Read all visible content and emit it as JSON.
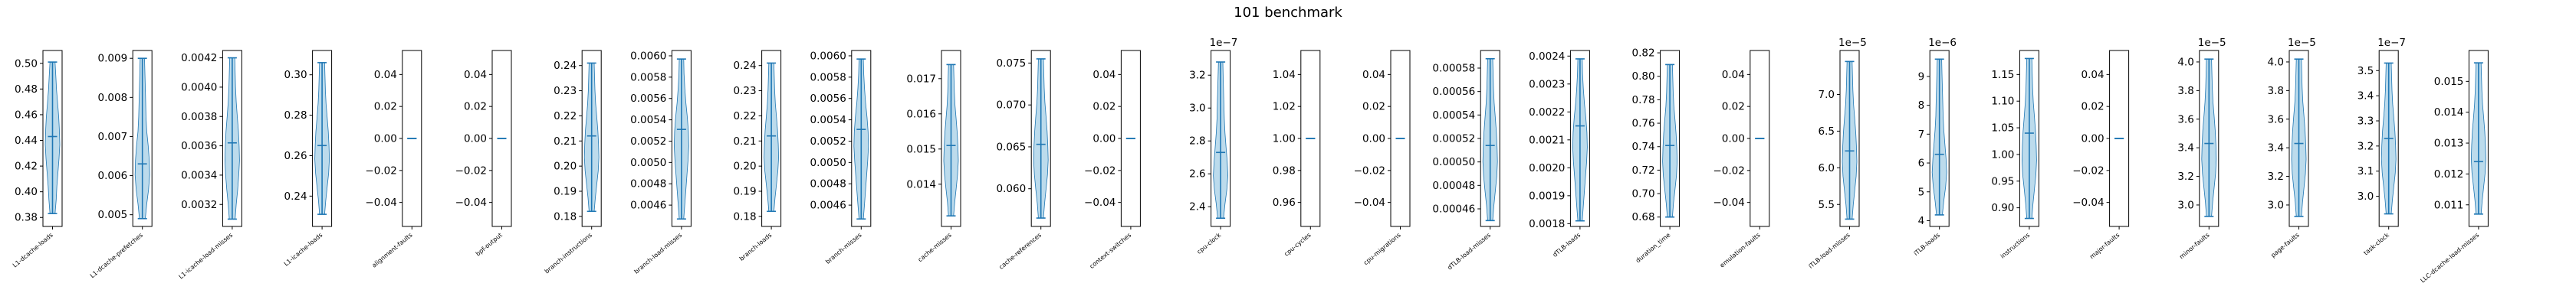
{
  "chart_data": {
    "type": "violin",
    "title": "101 benchmark",
    "colors": {
      "body": "#a6cfe6",
      "line": "#1f77b4",
      "frame": "#000000"
    },
    "panels": [
      {
        "label": "L1-dcache-loads",
        "ylim": [
          0.373,
          0.51
        ],
        "ticks": [
          "0.38",
          "0.40",
          "0.42",
          "0.44",
          "0.46",
          "0.48",
          "0.50"
        ],
        "tick_values": [
          0.38,
          0.4,
          0.42,
          0.44,
          0.46,
          0.48,
          0.5
        ],
        "exp": "",
        "min": 0.383,
        "max": 0.501,
        "mean": 0.443,
        "shape": [
          0.35,
          0.5,
          0.6,
          0.75,
          0.9,
          1.0,
          0.95,
          0.85,
          0.7,
          0.55,
          0.45,
          0.35
        ]
      },
      {
        "label": "L1-dcache-prefetches",
        "ylim": [
          0.0047,
          0.0092
        ],
        "ticks": [
          "0.005",
          "0.006",
          "0.007",
          "0.008",
          "0.009"
        ],
        "tick_values": [
          0.005,
          0.006,
          0.007,
          0.008,
          0.009
        ],
        "exp": "",
        "min": 0.0049,
        "max": 0.009,
        "mean": 0.0063,
        "shape": [
          0.4,
          0.6,
          0.85,
          1.0,
          0.95,
          0.8,
          0.6,
          0.5,
          0.45,
          0.4,
          0.35,
          0.3
        ]
      },
      {
        "label": "L1-icache-load-misses",
        "ylim": [
          0.00305,
          0.00425
        ],
        "ticks": [
          "0.0032",
          "0.0034",
          "0.0036",
          "0.0038",
          "0.0040",
          "0.0042"
        ],
        "tick_values": [
          0.0032,
          0.0034,
          0.0036,
          0.0038,
          0.004,
          0.0042
        ],
        "exp": "",
        "min": 0.0031,
        "max": 0.0042,
        "mean": 0.00362,
        "shape": [
          0.4,
          0.55,
          0.75,
          0.9,
          1.0,
          0.95,
          0.85,
          0.7,
          0.55,
          0.45,
          0.4,
          0.35
        ]
      },
      {
        "label": "L1-icache-loads",
        "ylim": [
          0.225,
          0.312
        ],
        "ticks": [
          "0.24",
          "0.26",
          "0.28",
          "0.30"
        ],
        "tick_values": [
          0.24,
          0.26,
          0.28,
          0.3
        ],
        "exp": "",
        "min": 0.231,
        "max": 0.306,
        "mean": 0.265,
        "shape": [
          0.35,
          0.5,
          0.7,
          0.9,
          1.0,
          0.95,
          0.85,
          0.7,
          0.55,
          0.45,
          0.4,
          0.35
        ]
      },
      {
        "label": "alignment-faults",
        "ylim": [
          -0.055,
          0.055
        ],
        "ticks": [
          "−0.04",
          "−0.02",
          "0.00",
          "0.02",
          "0.04"
        ],
        "tick_values": [
          -0.04,
          -0.02,
          0,
          0.02,
          0.04
        ],
        "exp": "",
        "min": 0,
        "max": 0,
        "mean": 0,
        "flat": true
      },
      {
        "label": "bpf-output",
        "ylim": [
          -0.055,
          0.055
        ],
        "ticks": [
          "−0.04",
          "−0.02",
          "0.00",
          "0.02",
          "0.04"
        ],
        "tick_values": [
          -0.04,
          -0.02,
          0,
          0.02,
          0.04
        ],
        "exp": "",
        "min": 0,
        "max": 0,
        "mean": 0,
        "flat": true
      },
      {
        "label": "branch-instructions",
        "ylim": [
          0.176,
          0.246
        ],
        "ticks": [
          "0.18",
          "0.19",
          "0.20",
          "0.21",
          "0.22",
          "0.23",
          "0.24"
        ],
        "tick_values": [
          0.18,
          0.19,
          0.2,
          0.21,
          0.22,
          0.23,
          0.24
        ],
        "exp": "",
        "min": 0.182,
        "max": 0.241,
        "mean": 0.212,
        "shape": [
          0.35,
          0.5,
          0.7,
          0.9,
          1.0,
          0.95,
          0.85,
          0.7,
          0.55,
          0.45,
          0.4,
          0.35
        ]
      },
      {
        "label": "branch-load-misses",
        "ylim": [
          0.0044,
          0.00605
        ],
        "ticks": [
          "0.0046",
          "0.0048",
          "0.0050",
          "0.0052",
          "0.0054",
          "0.0056",
          "0.0058",
          "0.0060"
        ],
        "tick_values": [
          0.0046,
          0.0048,
          0.005,
          0.0052,
          0.0054,
          0.0056,
          0.0058,
          0.006
        ],
        "exp": "",
        "min": 0.00447,
        "max": 0.00597,
        "mean": 0.00531,
        "shape": [
          0.3,
          0.45,
          0.6,
          0.75,
          0.9,
          1.0,
          0.95,
          0.8,
          0.6,
          0.45,
          0.35,
          0.3
        ]
      },
      {
        "label": "branch-loads",
        "ylim": [
          0.176,
          0.246
        ],
        "ticks": [
          "0.18",
          "0.19",
          "0.20",
          "0.21",
          "0.22",
          "0.23",
          "0.24"
        ],
        "tick_values": [
          0.18,
          0.19,
          0.2,
          0.21,
          0.22,
          0.23,
          0.24
        ],
        "exp": "",
        "min": 0.182,
        "max": 0.241,
        "mean": 0.212,
        "shape": [
          0.35,
          0.5,
          0.7,
          0.9,
          1.0,
          0.95,
          0.85,
          0.7,
          0.55,
          0.45,
          0.4,
          0.35
        ]
      },
      {
        "label": "branch-misses",
        "ylim": [
          0.0044,
          0.00605
        ],
        "ticks": [
          "0.0046",
          "0.0048",
          "0.0050",
          "0.0052",
          "0.0054",
          "0.0056",
          "0.0058",
          "0.0060"
        ],
        "tick_values": [
          0.0046,
          0.0048,
          0.005,
          0.0052,
          0.0054,
          0.0056,
          0.0058,
          0.006
        ],
        "exp": "",
        "min": 0.00447,
        "max": 0.00597,
        "mean": 0.00531,
        "shape": [
          0.3,
          0.45,
          0.6,
          0.75,
          0.9,
          1.0,
          0.95,
          0.8,
          0.6,
          0.45,
          0.35,
          0.3
        ]
      },
      {
        "label": "cache-misses",
        "ylim": [
          0.0128,
          0.0178
        ],
        "ticks": [
          "0.014",
          "0.015",
          "0.016",
          "0.017"
        ],
        "tick_values": [
          0.014,
          0.015,
          0.016,
          0.017
        ],
        "exp": "",
        "min": 0.0131,
        "max": 0.0174,
        "mean": 0.0151,
        "shape": [
          0.35,
          0.5,
          0.7,
          0.9,
          1.0,
          0.95,
          0.85,
          0.7,
          0.55,
          0.45,
          0.4,
          0.35
        ]
      },
      {
        "label": "cache-references",
        "ylim": [
          0.0555,
          0.0765
        ],
        "ticks": [
          "0.060",
          "0.065",
          "0.070",
          "0.075"
        ],
        "tick_values": [
          0.06,
          0.065,
          0.07,
          0.075
        ],
        "exp": "",
        "min": 0.0565,
        "max": 0.0755,
        "mean": 0.0653,
        "shape": [
          0.35,
          0.5,
          0.7,
          0.9,
          1.0,
          0.95,
          0.85,
          0.7,
          0.55,
          0.45,
          0.4,
          0.35
        ]
      },
      {
        "label": "context-switches",
        "ylim": [
          -0.055,
          0.055
        ],
        "ticks": [
          "−0.04",
          "−0.02",
          "0.00",
          "0.02",
          "0.04"
        ],
        "tick_values": [
          -0.04,
          -0.02,
          0,
          0.02,
          0.04
        ],
        "exp": "",
        "min": 0,
        "max": 0,
        "mean": 0,
        "flat": true
      },
      {
        "label": "cpu-clock",
        "ylim": [
          2.28,
          3.35
        ],
        "ticks": [
          "2.4",
          "2.6",
          "2.8",
          "3.0",
          "3.2"
        ],
        "tick_values": [
          2.4,
          2.6,
          2.8,
          3.0,
          3.2
        ],
        "exp": "1e−7",
        "min": 2.33,
        "max": 3.28,
        "mean": 2.73,
        "shape": [
          0.4,
          0.6,
          0.85,
          1.0,
          0.9,
          0.75,
          0.6,
          0.5,
          0.45,
          0.4,
          0.35,
          0.3
        ]
      },
      {
        "label": "cpu-cycles",
        "ylim": [
          0.945,
          1.055
        ],
        "ticks": [
          "0.96",
          "0.98",
          "1.00",
          "1.02",
          "1.04"
        ],
        "tick_values": [
          0.96,
          0.98,
          1.0,
          1.02,
          1.04
        ],
        "exp": "",
        "min": 1,
        "max": 1,
        "mean": 1,
        "flat": true
      },
      {
        "label": "cpu-migrations",
        "ylim": [
          -0.055,
          0.055
        ],
        "ticks": [
          "−0.04",
          "−0.02",
          "0.00",
          "0.02",
          "0.04"
        ],
        "tick_values": [
          -0.04,
          -0.02,
          0,
          0.02,
          0.04
        ],
        "exp": "",
        "min": 0,
        "max": 0,
        "mean": 0,
        "flat": true
      },
      {
        "label": "dTLB-load-misses",
        "ylim": [
          0.000445,
          0.000595
        ],
        "ticks": [
          "0.00046",
          "0.00048",
          "0.00050",
          "0.00052",
          "0.00054",
          "0.00056",
          "0.00058"
        ],
        "tick_values": [
          0.00046,
          0.00048,
          0.0005,
          0.00052,
          0.00054,
          0.00056,
          0.00058
        ],
        "exp": "",
        "min": 0.00045,
        "max": 0.000588,
        "mean": 0.000514,
        "shape": [
          0.35,
          0.5,
          0.7,
          0.9,
          1.0,
          0.95,
          0.85,
          0.7,
          0.55,
          0.45,
          0.4,
          0.35
        ]
      },
      {
        "label": "dTLB-loads",
        "ylim": [
          0.00179,
          0.00242
        ],
        "ticks": [
          "0.0018",
          "0.0019",
          "0.0020",
          "0.0021",
          "0.0022",
          "0.0023",
          "0.0024"
        ],
        "tick_values": [
          0.0018,
          0.0019,
          0.002,
          0.0021,
          0.0022,
          0.0023,
          0.0024
        ],
        "exp": "",
        "min": 0.00181,
        "max": 0.00239,
        "mean": 0.00215,
        "shape": [
          0.3,
          0.45,
          0.6,
          0.75,
          0.9,
          1.0,
          0.95,
          0.8,
          0.6,
          0.45,
          0.35,
          0.3
        ]
      },
      {
        "label": "duration_time",
        "ylim": [
          0.672,
          0.822
        ],
        "ticks": [
          "0.68",
          "0.70",
          "0.72",
          "0.74",
          "0.76",
          "0.78",
          "0.80",
          "0.82"
        ],
        "tick_values": [
          0.68,
          0.7,
          0.72,
          0.74,
          0.76,
          0.78,
          0.8,
          0.82
        ],
        "exp": "",
        "min": 0.68,
        "max": 0.81,
        "mean": 0.741,
        "shape": [
          0.35,
          0.5,
          0.7,
          0.9,
          1.0,
          0.95,
          0.85,
          0.7,
          0.55,
          0.45,
          0.4,
          0.35
        ]
      },
      {
        "label": "emulation-faults",
        "ylim": [
          -0.055,
          0.055
        ],
        "ticks": [
          "−0.04",
          "−0.02",
          "0.00",
          "0.02",
          "0.04"
        ],
        "tick_values": [
          -0.04,
          -0.02,
          0,
          0.02,
          0.04
        ],
        "exp": "",
        "min": 0,
        "max": 0,
        "mean": 0,
        "flat": true
      },
      {
        "label": "iTLB-load-misses",
        "ylim": [
          5.2,
          7.6
        ],
        "ticks": [
          "5.5",
          "6.0",
          "6.5",
          "7.0"
        ],
        "tick_values": [
          5.5,
          6.0,
          6.5,
          7.0
        ],
        "exp": "1e−5",
        "min": 5.3,
        "max": 7.45,
        "mean": 6.23,
        "shape": [
          0.35,
          0.5,
          0.7,
          0.9,
          1.0,
          0.95,
          0.85,
          0.7,
          0.55,
          0.45,
          0.4,
          0.35
        ]
      },
      {
        "label": "iTLB-loads",
        "ylim": [
          3.8,
          9.9
        ],
        "ticks": [
          "4",
          "5",
          "6",
          "7",
          "8",
          "9"
        ],
        "tick_values": [
          4,
          5,
          6,
          7,
          8,
          9
        ],
        "exp": "1e−6",
        "min": 4.2,
        "max": 9.6,
        "mean": 6.3,
        "shape": [
          0.4,
          0.6,
          0.85,
          1.0,
          0.9,
          0.75,
          0.6,
          0.5,
          0.45,
          0.4,
          0.35,
          0.3
        ]
      },
      {
        "label": "instructions",
        "ylim": [
          0.865,
          1.195
        ],
        "ticks": [
          "0.90",
          "0.95",
          "1.00",
          "1.05",
          "1.10",
          "1.15"
        ],
        "tick_values": [
          0.9,
          0.95,
          1.0,
          1.05,
          1.1,
          1.15
        ],
        "exp": "",
        "min": 0.88,
        "max": 1.18,
        "mean": 1.04,
        "shape": [
          0.35,
          0.5,
          0.7,
          0.9,
          1.0,
          0.95,
          0.85,
          0.7,
          0.55,
          0.45,
          0.4,
          0.35
        ]
      },
      {
        "label": "major-faults",
        "ylim": [
          -0.055,
          0.055
        ],
        "ticks": [
          "−0.04",
          "−0.02",
          "0.00",
          "0.02",
          "0.04"
        ],
        "tick_values": [
          -0.04,
          -0.02,
          0,
          0.02,
          0.04
        ],
        "exp": "",
        "min": 0,
        "max": 0,
        "mean": 0,
        "flat": true
      },
      {
        "label": "minor-faults",
        "ylim": [
          2.85,
          4.08
        ],
        "ticks": [
          "3.0",
          "3.2",
          "3.4",
          "3.6",
          "3.8",
          "4.0"
        ],
        "tick_values": [
          3.0,
          3.2,
          3.4,
          3.6,
          3.8,
          4.0
        ],
        "exp": "1e−5",
        "min": 2.92,
        "max": 4.02,
        "mean": 3.43,
        "shape": [
          0.35,
          0.5,
          0.7,
          0.9,
          1.0,
          0.95,
          0.85,
          0.7,
          0.55,
          0.45,
          0.4,
          0.35
        ]
      },
      {
        "label": "page-faults",
        "ylim": [
          2.85,
          4.08
        ],
        "ticks": [
          "3.0",
          "3.2",
          "3.4",
          "3.6",
          "3.8",
          "4.0"
        ],
        "tick_values": [
          3.0,
          3.2,
          3.4,
          3.6,
          3.8,
          4.0
        ],
        "exp": "1e−5",
        "min": 2.92,
        "max": 4.02,
        "mean": 3.43,
        "shape": [
          0.35,
          0.5,
          0.7,
          0.9,
          1.0,
          0.95,
          0.85,
          0.7,
          0.55,
          0.45,
          0.4,
          0.35
        ]
      },
      {
        "label": "task-clock",
        "ylim": [
          2.88,
          3.58
        ],
        "ticks": [
          "3.0",
          "3.1",
          "3.2",
          "3.3",
          "3.4",
          "3.5"
        ],
        "tick_values": [
          3.0,
          3.1,
          3.2,
          3.3,
          3.4,
          3.5
        ],
        "exp": "1e−7",
        "min": 2.93,
        "max": 3.53,
        "mean": 3.23,
        "shape": [
          0.35,
          0.5,
          0.7,
          0.9,
          1.0,
          0.95,
          0.85,
          0.7,
          0.55,
          0.45,
          0.4,
          0.35
        ]
      },
      {
        "label": "LLC-dcache-load-misses",
        "ylim": [
          0.0103,
          0.016
        ],
        "ticks": [
          "0.011",
          "0.012",
          "0.013",
          "0.014",
          "0.015"
        ],
        "tick_values": [
          0.011,
          0.012,
          0.013,
          0.014,
          0.015
        ],
        "exp": "",
        "min": 0.0107,
        "max": 0.0156,
        "mean": 0.0124,
        "shape": [
          0.35,
          0.5,
          0.7,
          0.9,
          1.0,
          0.95,
          0.85,
          0.7,
          0.55,
          0.45,
          0.4,
          0.35
        ]
      }
    ]
  }
}
